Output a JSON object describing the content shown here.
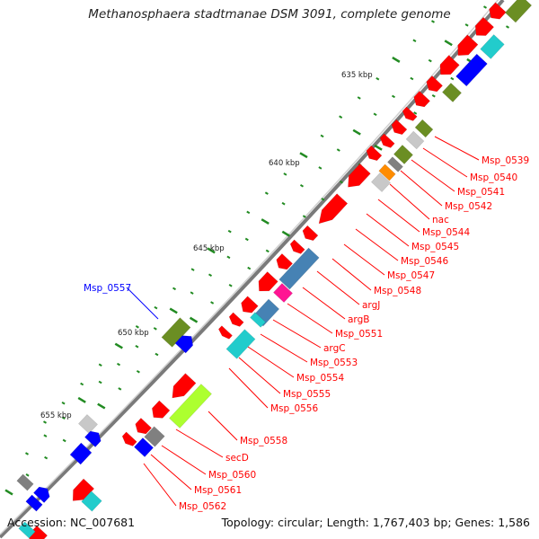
{
  "title": "Methanosphaera stadtmanae DSM 3091, complete genome",
  "footer": {
    "accession": "Accession: NC_007681",
    "summary": "Topology: circular; Length: 1,767,403 bp; Genes: 1,586"
  },
  "scale_labels": [
    "635 kbp",
    "640 kbp",
    "645 kbp",
    "650 kbp",
    "655 kbp"
  ],
  "gene_labels": [
    {
      "text": "Msp_0539",
      "color": "#ff0000"
    },
    {
      "text": "Msp_0540",
      "color": "#ff0000"
    },
    {
      "text": "Msp_0541",
      "color": "#ff0000"
    },
    {
      "text": "Msp_0542",
      "color": "#ff0000"
    },
    {
      "text": "nac",
      "color": "#ff0000"
    },
    {
      "text": "Msp_0544",
      "color": "#ff0000"
    },
    {
      "text": "Msp_0545",
      "color": "#ff0000"
    },
    {
      "text": "Msp_0546",
      "color": "#ff0000"
    },
    {
      "text": "Msp_0547",
      "color": "#ff0000"
    },
    {
      "text": "Msp_0548",
      "color": "#ff0000"
    },
    {
      "text": "argJ",
      "color": "#ff0000"
    },
    {
      "text": "argB",
      "color": "#ff0000"
    },
    {
      "text": "Msp_0551",
      "color": "#ff0000"
    },
    {
      "text": "argC",
      "color": "#ff0000"
    },
    {
      "text": "Msp_0553",
      "color": "#ff0000"
    },
    {
      "text": "Msp_0554",
      "color": "#ff0000"
    },
    {
      "text": "Msp_0555",
      "color": "#ff0000"
    },
    {
      "text": "Msp_0556",
      "color": "#ff0000"
    },
    {
      "text": "Msp_0557",
      "color": "#0000ff"
    },
    {
      "text": "Msp_0558",
      "color": "#ff0000"
    },
    {
      "text": "secD",
      "color": "#ff0000"
    },
    {
      "text": "Msp_0560",
      "color": "#ff0000"
    },
    {
      "text": "Msp_0561",
      "color": "#ff0000"
    },
    {
      "text": "Msp_0562",
      "color": "#ff0000"
    }
  ],
  "colors": {
    "red": "#ff0000",
    "blue": "#0000ff",
    "olive": "#6b8e23",
    "cyan": "#22cccc",
    "steelblue": "#4682b4",
    "magenta": "#ff1493",
    "gray": "#808080",
    "lightgray": "#c8c8c8",
    "orange": "#ff8c00",
    "yellowgreen": "#adff2f",
    "tick": "#228b22",
    "backbone": "#888888"
  }
}
